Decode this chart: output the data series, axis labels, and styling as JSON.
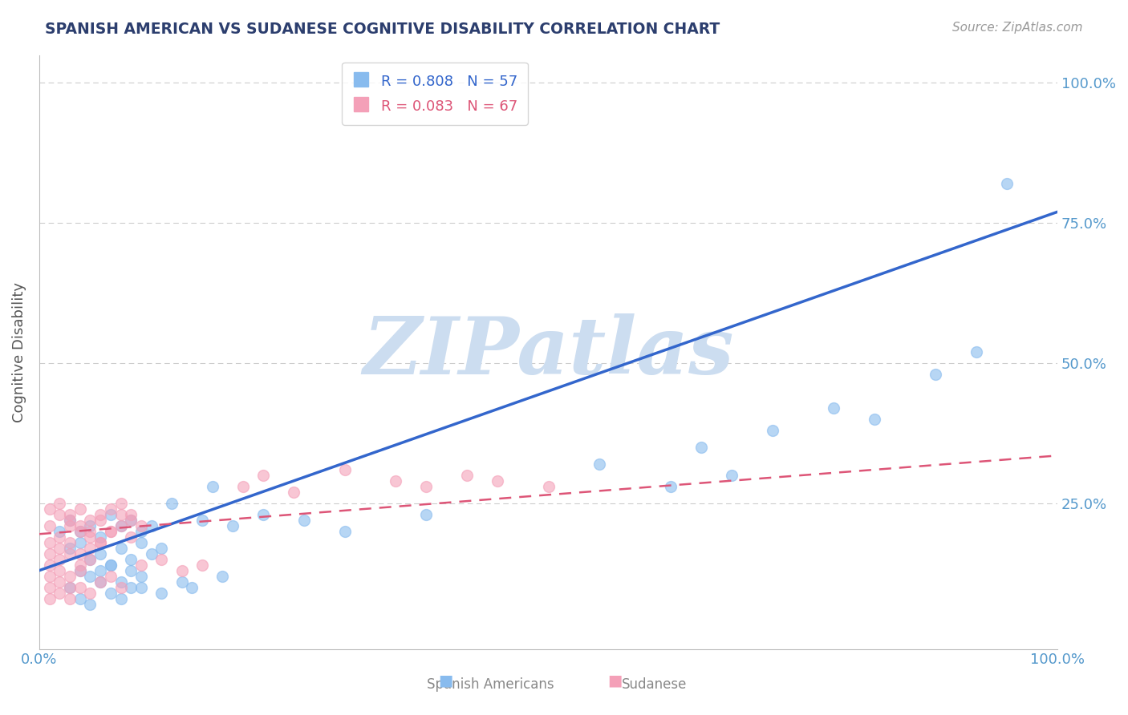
{
  "title": "SPANISH AMERICAN VS SUDANESE COGNITIVE DISABILITY CORRELATION CHART",
  "source_text": "Source: ZipAtlas.com",
  "ylabel": "Cognitive Disability",
  "watermark": "ZIPatlas",
  "xlim": [
    0.0,
    1.0
  ],
  "ylim": [
    -0.01,
    1.05
  ],
  "yticks": [
    0.0,
    0.25,
    0.5,
    0.75,
    1.0
  ],
  "ytick_labels": [
    "",
    "25.0%",
    "50.0%",
    "75.0%",
    "100.0%"
  ],
  "xtick_labels": [
    "0.0%",
    "100.0%"
  ],
  "blue_R": 0.808,
  "blue_N": 57,
  "pink_R": 0.083,
  "pink_N": 67,
  "blue_color": "#88bbee",
  "pink_color": "#f4a0b8",
  "blue_line_color": "#3366cc",
  "pink_line_color": "#dd5577",
  "background_color": "#ffffff",
  "title_color": "#2c3e6e",
  "axis_label_color": "#555555",
  "tick_label_color": "#5599cc",
  "watermark_color": "#ccddf0",
  "legend_blue_label": "Spanish Americans",
  "legend_pink_label": "Sudanese",
  "blue_line_x": [
    0.0,
    1.0
  ],
  "blue_line_y": [
    0.13,
    0.77
  ],
  "pink_line_x": [
    0.0,
    1.0
  ],
  "pink_line_y": [
    0.195,
    0.335
  ],
  "blue_scatter_x": [
    0.02,
    0.03,
    0.04,
    0.05,
    0.06,
    0.07,
    0.08,
    0.09,
    0.1,
    0.11,
    0.03,
    0.04,
    0.05,
    0.06,
    0.07,
    0.08,
    0.09,
    0.1,
    0.11,
    0.12,
    0.04,
    0.05,
    0.06,
    0.07,
    0.08,
    0.09,
    0.1,
    0.03,
    0.06,
    0.09,
    0.13,
    0.16,
    0.17,
    0.19,
    0.22,
    0.26,
    0.3,
    0.38,
    0.55,
    0.62,
    0.65,
    0.68,
    0.72,
    0.78,
    0.82,
    0.88,
    0.92,
    0.04,
    0.05,
    0.07,
    0.08,
    0.1,
    0.12,
    0.14,
    0.15,
    0.18,
    0.95
  ],
  "blue_scatter_y": [
    0.2,
    0.22,
    0.2,
    0.21,
    0.19,
    0.23,
    0.21,
    0.22,
    0.2,
    0.21,
    0.17,
    0.18,
    0.15,
    0.16,
    0.14,
    0.17,
    0.15,
    0.18,
    0.16,
    0.17,
    0.13,
    0.12,
    0.13,
    0.14,
    0.11,
    0.13,
    0.12,
    0.1,
    0.11,
    0.1,
    0.25,
    0.22,
    0.28,
    0.21,
    0.23,
    0.22,
    0.2,
    0.23,
    0.32,
    0.28,
    0.35,
    0.3,
    0.38,
    0.42,
    0.4,
    0.48,
    0.52,
    0.08,
    0.07,
    0.09,
    0.08,
    0.1,
    0.09,
    0.11,
    0.1,
    0.12,
    0.82
  ],
  "pink_scatter_x": [
    0.01,
    0.02,
    0.03,
    0.04,
    0.05,
    0.06,
    0.07,
    0.08,
    0.09,
    0.1,
    0.01,
    0.02,
    0.03,
    0.04,
    0.05,
    0.06,
    0.07,
    0.08,
    0.09,
    0.01,
    0.02,
    0.03,
    0.04,
    0.05,
    0.06,
    0.01,
    0.02,
    0.03,
    0.04,
    0.05,
    0.01,
    0.02,
    0.03,
    0.04,
    0.01,
    0.02,
    0.03,
    0.01,
    0.02,
    0.03,
    0.04,
    0.05,
    0.06,
    0.07,
    0.08,
    0.1,
    0.12,
    0.14,
    0.16,
    0.01,
    0.02,
    0.03,
    0.04,
    0.05,
    0.06,
    0.07,
    0.08,
    0.09,
    0.2,
    0.22,
    0.25,
    0.3,
    0.35,
    0.38,
    0.42,
    0.45,
    0.5
  ],
  "pink_scatter_y": [
    0.21,
    0.23,
    0.22,
    0.21,
    0.2,
    0.22,
    0.2,
    0.23,
    0.22,
    0.21,
    0.18,
    0.19,
    0.21,
    0.2,
    0.19,
    0.18,
    0.2,
    0.21,
    0.19,
    0.16,
    0.17,
    0.18,
    0.16,
    0.17,
    0.18,
    0.14,
    0.15,
    0.16,
    0.14,
    0.15,
    0.12,
    0.13,
    0.12,
    0.13,
    0.1,
    0.11,
    0.1,
    0.08,
    0.09,
    0.08,
    0.1,
    0.09,
    0.11,
    0.12,
    0.1,
    0.14,
    0.15,
    0.13,
    0.14,
    0.24,
    0.25,
    0.23,
    0.24,
    0.22,
    0.23,
    0.24,
    0.25,
    0.23,
    0.28,
    0.3,
    0.27,
    0.31,
    0.29,
    0.28,
    0.3,
    0.29,
    0.28
  ]
}
